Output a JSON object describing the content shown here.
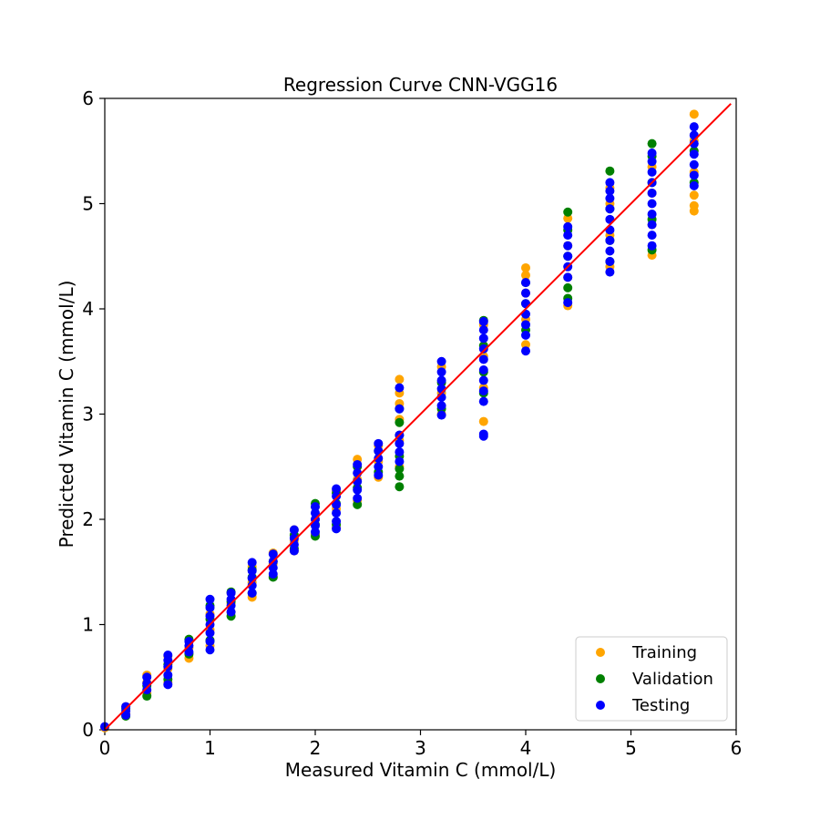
{
  "chart_data": {
    "type": "scatter",
    "title": "Regression Curve CNN-VGG16",
    "xlabel": "Measured Vitamin C (mmol/L)",
    "ylabel": "Predicted Vitamin C (mmol/L)",
    "xlim": [
      0,
      6
    ],
    "ylim": [
      0,
      6
    ],
    "xticks": [
      "0",
      "1",
      "2",
      "3",
      "4",
      "5",
      "6"
    ],
    "yticks": [
      "0",
      "1",
      "2",
      "3",
      "4",
      "5",
      "6"
    ],
    "grid": false,
    "legend_position": "bottom-right",
    "fit_line": {
      "x": [
        0,
        5.95
      ],
      "y": [
        0,
        5.95
      ],
      "color": "#ff0000"
    },
    "series": [
      {
        "name": "Training",
        "color": "#ffa500",
        "points": [
          [
            0,
            0.02
          ],
          [
            0.2,
            0.15
          ],
          [
            0.2,
            0.22
          ],
          [
            0.4,
            0.35
          ],
          [
            0.4,
            0.45
          ],
          [
            0.4,
            0.52
          ],
          [
            0.6,
            0.45
          ],
          [
            0.6,
            0.58
          ],
          [
            0.6,
            0.7
          ],
          [
            0.8,
            0.68
          ],
          [
            0.8,
            0.78
          ],
          [
            0.8,
            0.85
          ],
          [
            1.0,
            0.8
          ],
          [
            1.0,
            0.95
          ],
          [
            1.0,
            1.1
          ],
          [
            1.2,
            1.12
          ],
          [
            1.2,
            1.2
          ],
          [
            1.2,
            1.3
          ],
          [
            1.4,
            1.26
          ],
          [
            1.4,
            1.4
          ],
          [
            1.4,
            1.55
          ],
          [
            1.6,
            1.46
          ],
          [
            1.6,
            1.58
          ],
          [
            1.6,
            1.68
          ],
          [
            1.8,
            1.7
          ],
          [
            1.8,
            1.8
          ],
          [
            1.8,
            1.9
          ],
          [
            2.0,
            1.86
          ],
          [
            2.0,
            2.0
          ],
          [
            2.0,
            2.12
          ],
          [
            2.2,
            1.92
          ],
          [
            2.2,
            2.1
          ],
          [
            2.2,
            2.27
          ],
          [
            2.4,
            2.18
          ],
          [
            2.4,
            2.38
          ],
          [
            2.4,
            2.57
          ],
          [
            2.6,
            2.4
          ],
          [
            2.6,
            2.55
          ],
          [
            2.6,
            2.7
          ],
          [
            2.8,
            2.5
          ],
          [
            2.8,
            2.75
          ],
          [
            2.8,
            2.95
          ],
          [
            2.8,
            3.1
          ],
          [
            2.8,
            3.2
          ],
          [
            2.8,
            3.33
          ],
          [
            3.2,
            3.0
          ],
          [
            3.2,
            3.2
          ],
          [
            3.2,
            3.45
          ],
          [
            3.6,
            2.93
          ],
          [
            3.6,
            3.25
          ],
          [
            3.6,
            3.55
          ],
          [
            3.6,
            3.85
          ],
          [
            4.0,
            3.66
          ],
          [
            4.0,
            3.9
          ],
          [
            4.0,
            4.15
          ],
          [
            4.0,
            4.32
          ],
          [
            4.0,
            4.39
          ],
          [
            4.4,
            4.03
          ],
          [
            4.4,
            4.3
          ],
          [
            4.4,
            4.6
          ],
          [
            4.4,
            4.86
          ],
          [
            4.8,
            4.4
          ],
          [
            4.8,
            4.7
          ],
          [
            4.8,
            5.0
          ],
          [
            4.8,
            5.15
          ],
          [
            5.2,
            4.51
          ],
          [
            5.2,
            4.8
          ],
          [
            5.2,
            5.1
          ],
          [
            5.2,
            5.35
          ],
          [
            5.6,
            4.93
          ],
          [
            5.6,
            4.98
          ],
          [
            5.6,
            5.08
          ],
          [
            5.6,
            5.3
          ],
          [
            5.6,
            5.6
          ],
          [
            5.6,
            5.85
          ]
        ]
      },
      {
        "name": "Validation",
        "color": "#008000",
        "points": [
          [
            0.2,
            0.13
          ],
          [
            0.2,
            0.2
          ],
          [
            0.4,
            0.32
          ],
          [
            0.4,
            0.42
          ],
          [
            0.6,
            0.48
          ],
          [
            0.6,
            0.62
          ],
          [
            0.8,
            0.72
          ],
          [
            0.8,
            0.86
          ],
          [
            1.0,
            0.85
          ],
          [
            1.0,
            1.05
          ],
          [
            1.0,
            1.18
          ],
          [
            1.2,
            1.08
          ],
          [
            1.2,
            1.22
          ],
          [
            1.2,
            1.31
          ],
          [
            1.4,
            1.3
          ],
          [
            1.4,
            1.45
          ],
          [
            1.4,
            1.52
          ],
          [
            1.6,
            1.45
          ],
          [
            1.6,
            1.6
          ],
          [
            1.8,
            1.72
          ],
          [
            1.8,
            1.85
          ],
          [
            2.0,
            1.84
          ],
          [
            2.0,
            1.95
          ],
          [
            2.0,
            2.15
          ],
          [
            2.2,
            1.95
          ],
          [
            2.2,
            2.15
          ],
          [
            2.2,
            2.25
          ],
          [
            2.4,
            2.14
          ],
          [
            2.4,
            2.3
          ],
          [
            2.4,
            2.5
          ],
          [
            2.6,
            2.45
          ],
          [
            2.6,
            2.65
          ],
          [
            2.8,
            2.31
          ],
          [
            2.8,
            2.41
          ],
          [
            2.8,
            2.48
          ],
          [
            2.8,
            2.6
          ],
          [
            2.8,
            2.8
          ],
          [
            2.8,
            2.92
          ],
          [
            2.8,
            3.05
          ],
          [
            3.2,
            3.05
          ],
          [
            3.2,
            3.3
          ],
          [
            3.6,
            3.2
          ],
          [
            3.6,
            3.4
          ],
          [
            3.6,
            3.65
          ],
          [
            3.6,
            3.89
          ],
          [
            4.0,
            3.8
          ],
          [
            4.0,
            4.05
          ],
          [
            4.0,
            4.25
          ],
          [
            4.4,
            4.1
          ],
          [
            4.4,
            4.2
          ],
          [
            4.4,
            4.5
          ],
          [
            4.4,
            4.75
          ],
          [
            4.4,
            4.92
          ],
          [
            4.8,
            4.45
          ],
          [
            4.8,
            4.65
          ],
          [
            4.8,
            4.95
          ],
          [
            4.8,
            5.31
          ],
          [
            5.2,
            4.56
          ],
          [
            5.2,
            4.85
          ],
          [
            5.2,
            5.2
          ],
          [
            5.2,
            5.45
          ],
          [
            5.2,
            5.57
          ],
          [
            5.6,
            5.2
          ],
          [
            5.6,
            5.5
          ]
        ]
      },
      {
        "name": "Testing",
        "color": "#0000ff",
        "points": [
          [
            0,
            0.03
          ],
          [
            0.2,
            0.14
          ],
          [
            0.2,
            0.18
          ],
          [
            0.2,
            0.22
          ],
          [
            0.4,
            0.38
          ],
          [
            0.4,
            0.44
          ],
          [
            0.4,
            0.5
          ],
          [
            0.6,
            0.43
          ],
          [
            0.6,
            0.52
          ],
          [
            0.6,
            0.6
          ],
          [
            0.6,
            0.66
          ],
          [
            0.6,
            0.71
          ],
          [
            0.8,
            0.74
          ],
          [
            0.8,
            0.8
          ],
          [
            0.8,
            0.84
          ],
          [
            1.0,
            0.76
          ],
          [
            1.0,
            0.84
          ],
          [
            1.0,
            0.92
          ],
          [
            1.0,
            1.0
          ],
          [
            1.0,
            1.08
          ],
          [
            1.0,
            1.16
          ],
          [
            1.0,
            1.24
          ],
          [
            1.2,
            1.12
          ],
          [
            1.2,
            1.18
          ],
          [
            1.2,
            1.24
          ],
          [
            1.2,
            1.3
          ],
          [
            1.4,
            1.3
          ],
          [
            1.4,
            1.37
          ],
          [
            1.4,
            1.44
          ],
          [
            1.4,
            1.51
          ],
          [
            1.4,
            1.59
          ],
          [
            1.6,
            1.48
          ],
          [
            1.6,
            1.54
          ],
          [
            1.6,
            1.6
          ],
          [
            1.6,
            1.67
          ],
          [
            1.8,
            1.7
          ],
          [
            1.8,
            1.76
          ],
          [
            1.8,
            1.82
          ],
          [
            1.8,
            1.9
          ],
          [
            2.0,
            1.88
          ],
          [
            2.0,
            1.94
          ],
          [
            2.0,
            2.0
          ],
          [
            2.0,
            2.06
          ],
          [
            2.0,
            2.12
          ],
          [
            2.2,
            1.91
          ],
          [
            2.2,
            1.98
          ],
          [
            2.2,
            2.06
          ],
          [
            2.2,
            2.14
          ],
          [
            2.2,
            2.22
          ],
          [
            2.2,
            2.29
          ],
          [
            2.4,
            2.2
          ],
          [
            2.4,
            2.28
          ],
          [
            2.4,
            2.36
          ],
          [
            2.4,
            2.44
          ],
          [
            2.4,
            2.52
          ],
          [
            2.6,
            2.42
          ],
          [
            2.6,
            2.5
          ],
          [
            2.6,
            2.58
          ],
          [
            2.6,
            2.65
          ],
          [
            2.6,
            2.72
          ],
          [
            2.8,
            2.55
          ],
          [
            2.8,
            2.64
          ],
          [
            2.8,
            2.72
          ],
          [
            2.8,
            2.8
          ],
          [
            2.8,
            3.05
          ],
          [
            2.8,
            3.25
          ],
          [
            3.2,
            2.99
          ],
          [
            3.2,
            3.08
          ],
          [
            3.2,
            3.16
          ],
          [
            3.2,
            3.24
          ],
          [
            3.2,
            3.32
          ],
          [
            3.2,
            3.4
          ],
          [
            3.2,
            3.5
          ],
          [
            3.6,
            2.79
          ],
          [
            3.6,
            2.81
          ],
          [
            3.6,
            3.12
          ],
          [
            3.6,
            3.22
          ],
          [
            3.6,
            3.32
          ],
          [
            3.6,
            3.42
          ],
          [
            3.6,
            3.52
          ],
          [
            3.6,
            3.62
          ],
          [
            3.6,
            3.72
          ],
          [
            3.6,
            3.8
          ],
          [
            3.6,
            3.88
          ],
          [
            4.0,
            3.6
          ],
          [
            4.0,
            3.75
          ],
          [
            4.0,
            3.85
          ],
          [
            4.0,
            3.95
          ],
          [
            4.0,
            4.05
          ],
          [
            4.0,
            4.15
          ],
          [
            4.0,
            4.25
          ],
          [
            4.4,
            4.06
          ],
          [
            4.4,
            4.3
          ],
          [
            4.4,
            4.4
          ],
          [
            4.4,
            4.5
          ],
          [
            4.4,
            4.6
          ],
          [
            4.4,
            4.7
          ],
          [
            4.4,
            4.78
          ],
          [
            4.8,
            4.35
          ],
          [
            4.8,
            4.45
          ],
          [
            4.8,
            4.55
          ],
          [
            4.8,
            4.65
          ],
          [
            4.8,
            4.75
          ],
          [
            4.8,
            4.85
          ],
          [
            4.8,
            4.95
          ],
          [
            4.8,
            5.05
          ],
          [
            4.8,
            5.12
          ],
          [
            4.8,
            5.2
          ],
          [
            5.2,
            4.6
          ],
          [
            5.2,
            4.7
          ],
          [
            5.2,
            4.8
          ],
          [
            5.2,
            4.9
          ],
          [
            5.2,
            5.0
          ],
          [
            5.2,
            5.1
          ],
          [
            5.2,
            5.2
          ],
          [
            5.2,
            5.3
          ],
          [
            5.2,
            5.4
          ],
          [
            5.2,
            5.48
          ],
          [
            5.6,
            5.17
          ],
          [
            5.6,
            5.27
          ],
          [
            5.6,
            5.37
          ],
          [
            5.6,
            5.47
          ],
          [
            5.6,
            5.57
          ],
          [
            5.6,
            5.65
          ],
          [
            5.6,
            5.73
          ]
        ]
      }
    ]
  }
}
